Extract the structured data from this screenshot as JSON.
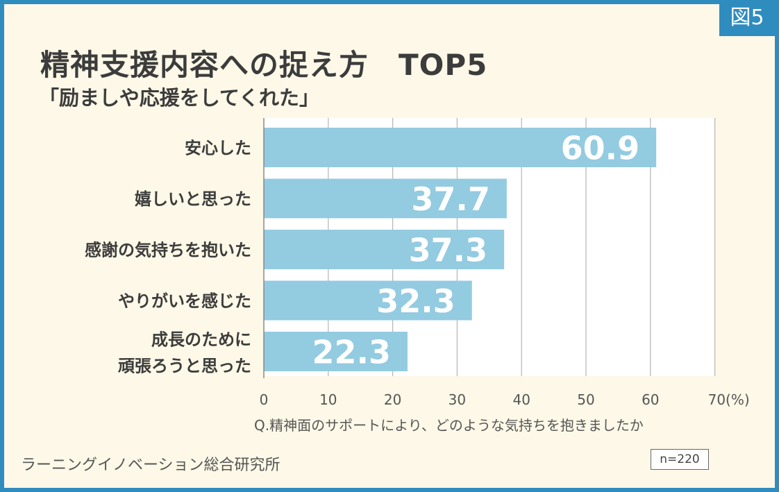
{
  "badge": "図5",
  "colors": {
    "frame": "#2f8cbf",
    "background": "#fdf8e7",
    "bar": "#93cbe1",
    "grid": "#b5b5b5"
  },
  "chart_data": {
    "type": "bar",
    "orientation": "horizontal",
    "title": "精神支援内容への捉え方　TOP5",
    "subtitle": "「励ましや応援をしてくれた」",
    "categories": [
      "安心した",
      "嬉しいと思った",
      "感謝の気持ちを抱いた",
      "やりがいを感じた",
      "成長のために\n頑張ろうと思った"
    ],
    "values": [
      60.9,
      37.7,
      37.3,
      32.3,
      22.3
    ],
    "value_labels": [
      "60.9",
      "37.7",
      "37.3",
      "32.3",
      "22.3"
    ],
    "xlim": [
      0,
      70
    ],
    "xticks": [
      "0",
      "10",
      "20",
      "30",
      "40",
      "50",
      "60",
      "70(%)"
    ],
    "grid": true,
    "xlabel": "Q.精神面のサポートにより、どのような気持ちを抱きましたか",
    "ylabel": ""
  },
  "source": "ラーニングイノベーション総合研究所",
  "n_label": "n=220"
}
